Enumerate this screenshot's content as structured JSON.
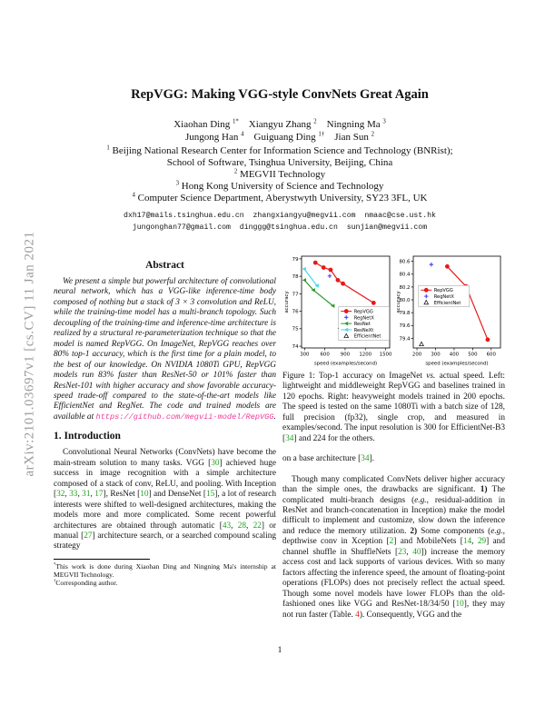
{
  "arxiv_banner": "arXiv:2101.03697v1  [cs.CV]  11 Jan 2021",
  "page": {
    "number": "1"
  },
  "header": {
    "title": "RepVGG: Making VGG-style ConvNets Great Again",
    "author_lines": [
      [
        {
          "t": "Xiaohan Ding "
        },
        {
          "t": "1*",
          "c": "sup"
        },
        {
          "t": "    Xiangyu Zhang "
        },
        {
          "t": "2",
          "c": "sup"
        },
        {
          "t": "    Ningning Ma "
        },
        {
          "t": "3",
          "c": "sup"
        }
      ],
      [
        {
          "t": "Jungong Han "
        },
        {
          "t": "4",
          "c": "sup"
        },
        {
          "t": "    Guiguang Ding "
        },
        {
          "t": "1†",
          "c": "sup"
        },
        {
          "t": "    Jian Sun "
        },
        {
          "t": "2",
          "c": "sup"
        }
      ]
    ],
    "affiliations": [
      [
        {
          "t": "1",
          "c": "sup"
        },
        {
          "t": " Beijing National Research Center for Information Science and Technology (BNRist);"
        }
      ],
      [
        {
          "t": "School of Software, Tsinghua University, Beijing, China"
        }
      ],
      [
        {
          "t": "2",
          "c": "sup"
        },
        {
          "t": " MEGVII Technology"
        }
      ],
      [
        {
          "t": "3",
          "c": "sup"
        },
        {
          "t": " Hong Kong University of Science and Technology"
        }
      ],
      [
        {
          "t": "4",
          "c": "sup"
        },
        {
          "t": " Computer Science Department, Aberystwyth University, SY23 3FL, UK"
        }
      ]
    ],
    "email_lines": [
      "dxh17@mails.tsinghua.edu.cn  zhangxiangyu@megvii.com  nmaac@cse.ust.hk",
      "jungonghan77@gmail.com  dinggg@tsinghua.edu.cn  sunjian@megvii.com"
    ]
  },
  "abstract": {
    "heading": "Abstract",
    "body": [
      {
        "t": "We present a simple but powerful architecture of convolutional neural network, which has a VGG-like inference-time body composed of nothing but a stack of 3 × 3 convolution and ReLU, while the training-time model has a multi-branch topology. Such decoupling of the training-time and inference-time architecture is realized by a structural re-parameterization technique so that the model is named RepVGG. On ImageNet, RepVGG reaches over 80% top-1 accuracy, which is the first time for a plain model, to the best of our knowledge. On NVIDIA 1080Ti GPU, RepVGG models run 83% faster than ResNet-50 or 101% faster than ResNet-101 with higher accuracy and show favorable accuracy-speed trade-off compared to the state-of-the-art models like EfficientNet and RegNet. The code and trained models are available at "
      },
      {
        "t": "https://github.com/megvii-model/RepVGG",
        "c": "url"
      },
      {
        "t": "."
      }
    ]
  },
  "intro": {
    "heading": "1. Introduction",
    "paragraph": [
      {
        "t": "Convolutional Neural Networks (ConvNets) have become the main-stream solution to many tasks.  VGG ["
      },
      {
        "t": "30",
        "c": "cite"
      },
      {
        "t": "] achieved huge success in image recognition with a simple architecture composed of a stack of conv, ReLU, and pooling. With Inception ["
      },
      {
        "t": "32",
        "c": "cite"
      },
      {
        "t": ", "
      },
      {
        "t": "33",
        "c": "cite"
      },
      {
        "t": ", "
      },
      {
        "t": "31",
        "c": "cite"
      },
      {
        "t": ", "
      },
      {
        "t": "17",
        "c": "cite"
      },
      {
        "t": "], ResNet ["
      },
      {
        "t": "10",
        "c": "cite"
      },
      {
        "t": "] and DenseNet ["
      },
      {
        "t": "15",
        "c": "cite"
      },
      {
        "t": "], a lot of research interests were shifted to well-designed architectures, making the models more and more complicated. Some recent powerful architectures are obtained through automatic ["
      },
      {
        "t": "43",
        "c": "cite"
      },
      {
        "t": ", "
      },
      {
        "t": "28",
        "c": "cite"
      },
      {
        "t": ", "
      },
      {
        "t": "22",
        "c": "cite"
      },
      {
        "t": "] or manual ["
      },
      {
        "t": "27",
        "c": "cite"
      },
      {
        "t": "] architecture search, or a searched compound scaling strategy"
      }
    ]
  },
  "footnotes": [
    [
      {
        "t": "*",
        "c": "sup"
      },
      {
        "t": "This work is done during Xiaohan Ding and Ningning Ma's internship at MEGVII Technology."
      }
    ],
    [
      {
        "t": "†",
        "c": "sup"
      },
      {
        "t": "Corresponding author."
      }
    ]
  ],
  "figure1": {
    "caption": [
      {
        "t": "Figure 1: Top-1 accuracy on ImageNet "
      },
      {
        "t": "vs.",
        "c": "i"
      },
      {
        "t": " actual speed. Left: lightweight and middleweight RepVGG and baselines trained in 120 epochs. Right: heavyweight models trained in 200 epochs. The speed is tested on the same 1080Ti with a batch size of 128, full precision (fp32), single crop, and measured in examples/second. The input resolution is 300 for EfficientNet-B3 ["
      },
      {
        "t": "34",
        "c": "cite"
      },
      {
        "t": "] and 224 for the others."
      }
    ]
  },
  "right_column": {
    "paragraphs": [
      [
        {
          "t": "on a base architecture ["
        },
        {
          "t": "34",
          "c": "cite"
        },
        {
          "t": "]."
        }
      ],
      [
        {
          "t": "Though many complicated ConvNets deliver higher accuracy than the simple ones, the drawbacks are significant. "
        },
        {
          "t": "1)",
          "c": "b"
        },
        {
          "t": " The complicated multi-branch designs ("
        },
        {
          "t": "e.g.",
          "c": "i"
        },
        {
          "t": ", residual-addition in ResNet and branch-concatenation in Inception) make the model difficult to implement and customize, slow down the inference and reduce the memory utilization. "
        },
        {
          "t": "2)",
          "c": "b"
        },
        {
          "t": " Some components ("
        },
        {
          "t": "e.g.",
          "c": "i"
        },
        {
          "t": ", depthwise conv in Xception ["
        },
        {
          "t": "2",
          "c": "cite"
        },
        {
          "t": "] and MobileNets ["
        },
        {
          "t": "14",
          "c": "cite"
        },
        {
          "t": ", "
        },
        {
          "t": "29",
          "c": "cite"
        },
        {
          "t": "] and channel shuffle in ShuffleNets ["
        },
        {
          "t": "23",
          "c": "cite"
        },
        {
          "t": ", "
        },
        {
          "t": "40",
          "c": "cite"
        },
        {
          "t": "]) increase the memory access cost and lack supports of various devices. With so many factors affecting the inference speed, the amount of floating-point operations (FLOPs) does not precisely reflect the actual speed. Though some novel models have lower FLOPs than the old-fashioned ones like VGG and ResNet-18/34/50 ["
        },
        {
          "t": "10",
          "c": "cite"
        },
        {
          "t": "], they may not run faster (Table. "
        },
        {
          "t": "4",
          "c": "ref"
        },
        {
          "t": "). Consequently, VGG and the"
        }
      ]
    ]
  },
  "chart_data": [
    {
      "type": "line",
      "title": "",
      "xlabel": "speed (examples/second)",
      "ylabel": "accuracy",
      "xlim": [
        255,
        1560
      ],
      "ylim": [
        73.9,
        79.15
      ],
      "xticks": [
        {
          "v": 300,
          "l": "300"
        },
        {
          "v": 600,
          "l": "600"
        },
        {
          "v": 900,
          "l": "900"
        },
        {
          "v": 1200,
          "l": "1200"
        },
        {
          "v": 1500,
          "l": "1500"
        }
      ],
      "yticks": [
        {
          "v": 74,
          "l": "74"
        },
        {
          "v": 75,
          "l": "75"
        },
        {
          "v": 76,
          "l": "76"
        },
        {
          "v": 77,
          "l": "77"
        },
        {
          "v": 78,
          "l": "78"
        },
        {
          "v": 79,
          "l": "79"
        }
      ],
      "legend": {
        "x": 0.42,
        "y": 0.55
      },
      "series": [
        {
          "name": "RepVGG",
          "color": "#e61919",
          "marker": "circle",
          "line": true,
          "points": [
            [
              460,
              78.78
            ],
            [
              581,
              78.5
            ],
            [
              685,
              78.37
            ],
            [
              792,
              77.78
            ],
            [
              868,
              77.58
            ],
            [
              1322,
              76.48
            ]
          ]
        },
        {
          "name": "RegNetX",
          "color": "#4040ff",
          "marker": "plus",
          "line": false,
          "points": [
            [
              671,
              78.02
            ]
          ]
        },
        {
          "name": "ResNet",
          "color": "#2d9b2d",
          "marker": "tri-left",
          "line": true,
          "points": [
            [
              297,
              77.78
            ],
            [
              430,
              77.21
            ],
            [
              719,
              76.31
            ]
          ]
        },
        {
          "name": "ResNeXt",
          "color": "#45d9e6",
          "marker": "tri-left",
          "line": true,
          "points": [
            [
              295,
              78.42
            ],
            [
              484,
              77.46
            ]
          ]
        },
        {
          "name": "EfficientNet",
          "color": "#222222",
          "marker": "tri-open",
          "line": false,
          "points": [
            [
              829,
              75.11
            ]
          ]
        }
      ]
    },
    {
      "type": "line",
      "title": "",
      "xlabel": "speed (examples/second)",
      "ylabel": "accuracy",
      "xlim": [
        180,
        650
      ],
      "ylim": [
        79.25,
        80.68
      ],
      "xticks": [
        {
          "v": 200,
          "l": "200"
        },
        {
          "v": 300,
          "l": "300"
        },
        {
          "v": 400,
          "l": "400"
        },
        {
          "v": 500,
          "l": "500"
        },
        {
          "v": 600,
          "l": "600"
        }
      ],
      "yticks": [
        {
          "v": 79.4,
          "l": "79.4"
        },
        {
          "v": 79.6,
          "l": "79.6"
        },
        {
          "v": 79.8,
          "l": "79.8"
        },
        {
          "v": 80.0,
          "l": "80.0"
        },
        {
          "v": 80.2,
          "l": "80.2"
        },
        {
          "v": 80.4,
          "l": "80.4"
        },
        {
          "v": 80.6,
          "l": "80.6"
        }
      ],
      "legend": {
        "x": 0.06,
        "y": 0.32
      },
      "series": [
        {
          "name": "RepVGG",
          "color": "#e61919",
          "marker": "circle",
          "line": true,
          "points": [
            [
              363,
              80.52
            ],
            [
              464,
              80.21
            ],
            [
              581,
              79.38
            ]
          ]
        },
        {
          "name": "RegNetX",
          "color": "#4040ff",
          "marker": "plus",
          "line": false,
          "points": [
            [
              277,
              80.55
            ]
          ]
        },
        {
          "name": "EfficientNet",
          "color": "#222222",
          "marker": "tri-open",
          "line": false,
          "points": [
            [
              224,
              79.31
            ]
          ]
        }
      ]
    }
  ]
}
